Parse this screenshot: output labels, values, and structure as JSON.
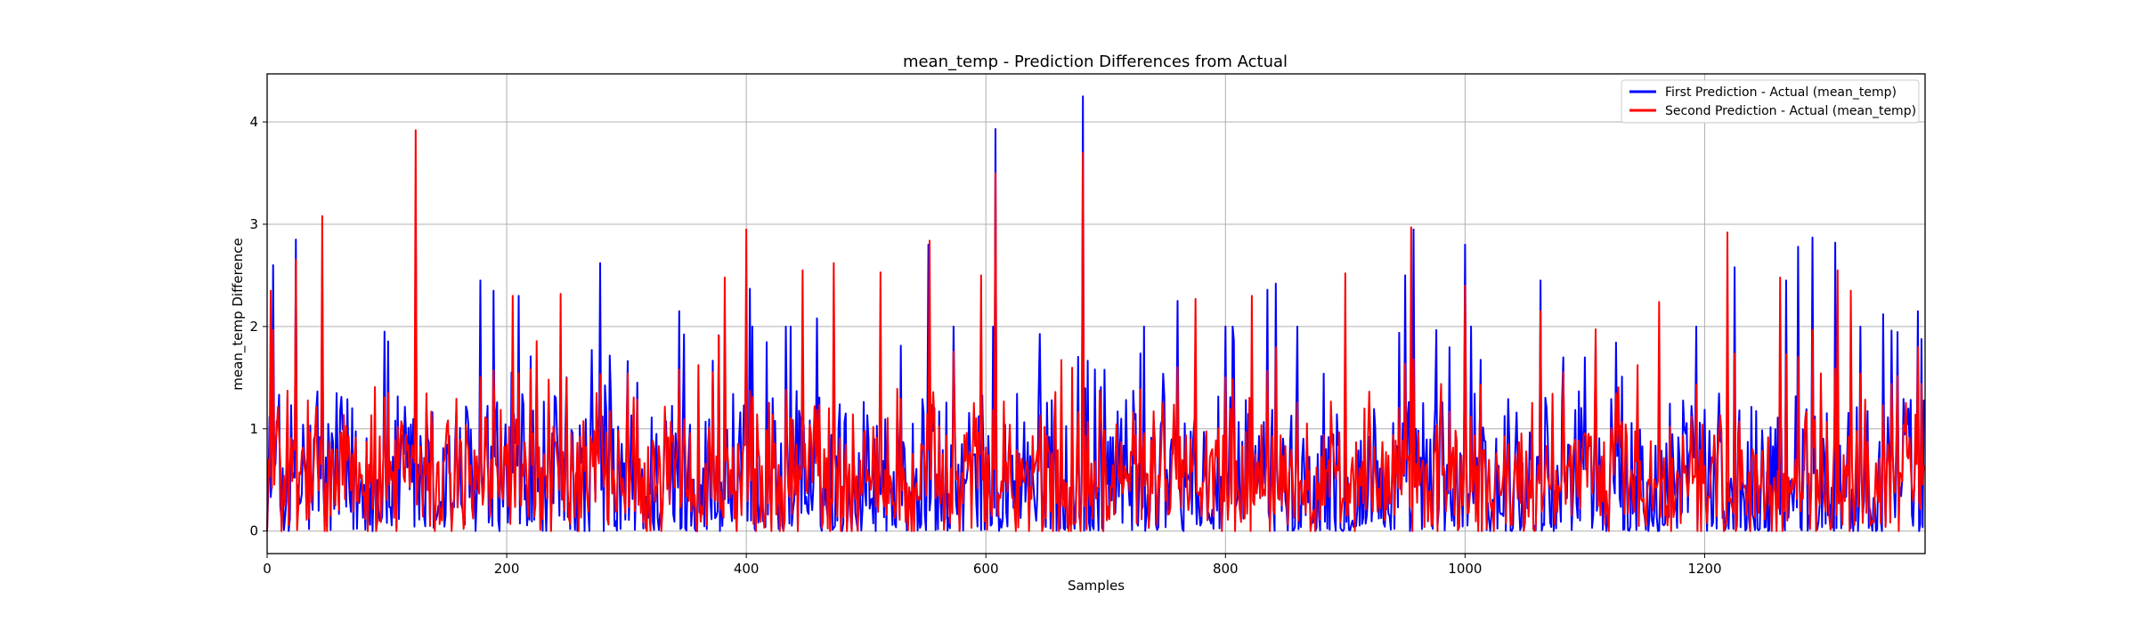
{
  "chart_data": {
    "type": "line",
    "title": "mean_temp - Prediction Differences from Actual",
    "xlabel": "Samples",
    "ylabel": "mean_temp Difference",
    "xlim": [
      0,
      1384
    ],
    "ylim": [
      -0.22,
      4.47
    ],
    "x_ticks": [
      0,
      200,
      400,
      600,
      800,
      1000,
      1200
    ],
    "y_ticks": [
      0,
      1,
      2,
      3,
      4
    ],
    "grid": true,
    "legend_position": "top-right",
    "num_points": 1384,
    "series": [
      {
        "name": "First Prediction - Actual (mean_temp)",
        "color": "#0000ff",
        "peaks": [
          [
            5,
            2.6
          ],
          [
            24,
            2.85
          ],
          [
            46,
            2.3
          ],
          [
            98,
            1.95
          ],
          [
            124,
            3.25
          ],
          [
            178,
            2.45
          ],
          [
            189,
            2.35
          ],
          [
            210,
            2.3
          ],
          [
            278,
            2.62
          ],
          [
            344,
            2.15
          ],
          [
            403,
            2.37
          ],
          [
            459,
            2.08
          ],
          [
            552,
            2.8
          ],
          [
            608,
            3.93
          ],
          [
            681,
            4.25
          ],
          [
            760,
            2.25
          ],
          [
            800,
            2.0
          ],
          [
            835,
            2.36
          ],
          [
            842,
            2.42
          ],
          [
            950,
            2.5
          ],
          [
            957,
            2.95
          ],
          [
            1000,
            2.8
          ],
          [
            1063,
            2.45
          ],
          [
            1225,
            2.58
          ],
          [
            1268,
            2.45
          ],
          [
            1278,
            2.78
          ],
          [
            1290,
            2.87
          ],
          [
            1309,
            2.82
          ],
          [
            1349,
            2.12
          ],
          [
            1378,
            2.15
          ]
        ]
      },
      {
        "name": "Second Prediction - Actual (mean_temp)",
        "color": "#ff0000",
        "peaks": [
          [
            3,
            2.35
          ],
          [
            24,
            2.65
          ],
          [
            46,
            3.08
          ],
          [
            124,
            3.92
          ],
          [
            205,
            2.3
          ],
          [
            245,
            2.32
          ],
          [
            382,
            2.48
          ],
          [
            400,
            2.95
          ],
          [
            447,
            2.55
          ],
          [
            473,
            2.62
          ],
          [
            512,
            2.53
          ],
          [
            553,
            2.84
          ],
          [
            596,
            2.5
          ],
          [
            608,
            3.5
          ],
          [
            681,
            3.7
          ],
          [
            775,
            2.27
          ],
          [
            822,
            2.3
          ],
          [
            900,
            2.52
          ],
          [
            955,
            2.97
          ],
          [
            1000,
            2.4
          ],
          [
            1063,
            2.15
          ],
          [
            1162,
            2.24
          ],
          [
            1219,
            2.92
          ],
          [
            1263,
            2.48
          ],
          [
            1311,
            2.55
          ],
          [
            1322,
            2.35
          ]
        ]
      }
    ]
  }
}
